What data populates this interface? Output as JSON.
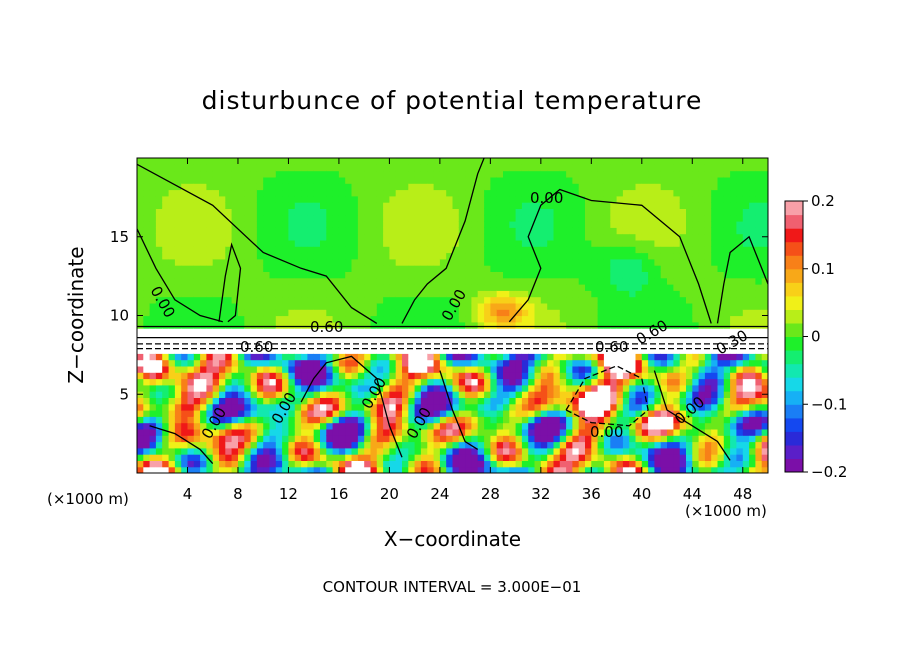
{
  "chart_data": {
    "type": "heatmap",
    "title": "disturbunce of potential temperature",
    "xlabel": "X−coordinate",
    "ylabel": "Z−coordinate",
    "x_unit": "(×1000 m)",
    "x_ticks": [
      4,
      8,
      12,
      16,
      20,
      24,
      28,
      32,
      36,
      40,
      44,
      48
    ],
    "y_ticks": [
      5,
      10,
      15
    ],
    "xlim": [
      0,
      50
    ],
    "ylim": [
      0,
      20
    ],
    "colorbar": {
      "ticks": [
        0.2,
        0.1,
        0,
        -0.1,
        -0.2
      ],
      "tick_labels": [
        "0.2",
        "0.1",
        "0",
        "−0.1",
        "−0.2"
      ],
      "range": [
        -0.2,
        0.2
      ],
      "colors": [
        "#7b0fa8",
        "#5a1fc8",
        "#2a2ad8",
        "#1448f0",
        "#1a7ef5",
        "#16b0f5",
        "#16d8e8",
        "#12e8b0",
        "#14ee70",
        "#1ef02a",
        "#6ae81a",
        "#b8ee18",
        "#f0f018",
        "#f8d018",
        "#f8a818",
        "#f88018",
        "#f55018",
        "#f01818",
        "#f06070",
        "#f8a0a8"
      ]
    },
    "contour_labels": [
      "0.00",
      "0.00",
      "0.00",
      "0.00",
      "0.60",
      "0.60",
      "0.00",
      "0.00",
      "0.00",
      "0.00",
      "0.00",
      "0.60",
      "0.60",
      "0.30"
    ],
    "footnote": "CONTOUR INTERVAL = 3.000E−01"
  }
}
